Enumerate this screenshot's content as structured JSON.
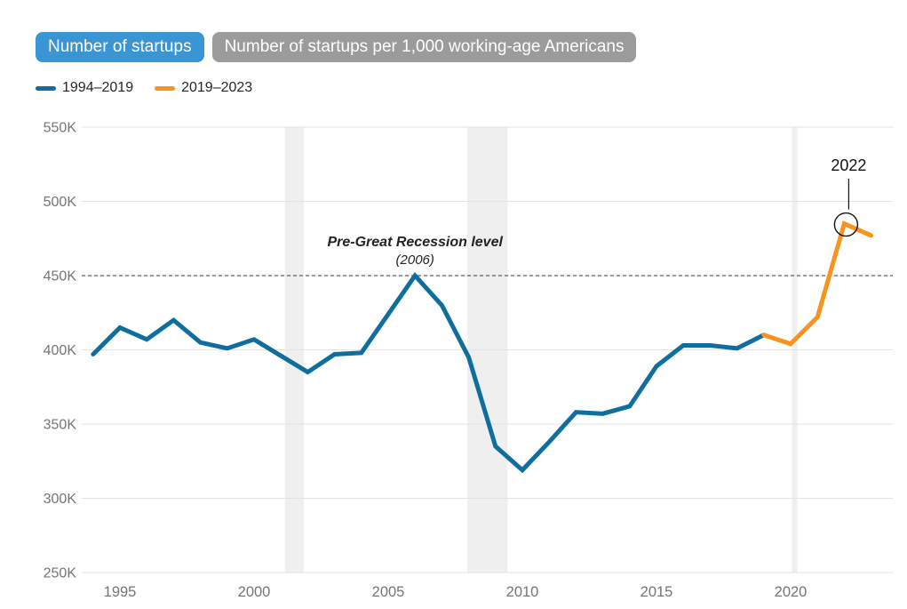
{
  "toggle_buttons": [
    {
      "label": "Number of startups",
      "active": true,
      "bg": "#3a95d5"
    },
    {
      "label": "Number of startups per 1,000 working-age Americans",
      "active": false,
      "bg": "#9b9b9b"
    }
  ],
  "legend": {
    "items": [
      {
        "label": "1994–2019",
        "color": "#106e9e"
      },
      {
        "label": "2019–2023",
        "color": "#f8941d"
      }
    ]
  },
  "colors": {
    "grid": "#e3e3e3",
    "recession_band": "#efefef",
    "reference_dash": "#3a3a3a",
    "axis_text": "#757575",
    "callout": "#111111"
  },
  "chart_data": {
    "type": "line",
    "title": "Number of startups",
    "legend_position": "top-left",
    "grid": true,
    "x_axis": {
      "ticks": [
        1995,
        2000,
        2005,
        2010,
        2015,
        2020
      ],
      "range": [
        1993.6,
        2023.8
      ]
    },
    "y_axis": {
      "tick_values": [
        550000,
        500000,
        450000,
        400000,
        350000,
        300000,
        250000
      ],
      "tick_labels": [
        "550K",
        "500K",
        "450K",
        "400K",
        "350K",
        "300K",
        "250K"
      ],
      "range": [
        250000,
        550000
      ]
    },
    "series": [
      {
        "name": "1994–2019",
        "color": "#106e9e",
        "x": [
          1994,
          1995,
          1996,
          1997,
          1998,
          1999,
          2000,
          2001,
          2002,
          2003,
          2004,
          2005,
          2006,
          2007,
          2008,
          2009,
          2010,
          2011,
          2012,
          2013,
          2014,
          2015,
          2016,
          2017,
          2018,
          2019
        ],
        "values": [
          397000,
          415000,
          407000,
          420000,
          405000,
          401000,
          407000,
          396000,
          385000,
          397000,
          398000,
          424000,
          450000,
          430000,
          395000,
          335000,
          319000,
          338000,
          358000,
          357000,
          362000,
          389000,
          403000,
          403000,
          401000,
          410000
        ]
      },
      {
        "name": "2019–2023",
        "color": "#f8941d",
        "x": [
          2019,
          2020,
          2021,
          2022,
          2023
        ],
        "values": [
          410000,
          404000,
          422000,
          485000,
          477000
        ]
      }
    ],
    "reference_line": {
      "value": 450000,
      "label": "Pre-Great Recession level",
      "sublabel": "(2006)",
      "label_x": 2006,
      "style": "dashed"
    },
    "callout": {
      "label": "2022",
      "x": 2022,
      "value": 485000
    },
    "recession_bands": [
      {
        "from": 2001.15,
        "to": 2001.85
      },
      {
        "from": 2007.95,
        "to": 2009.45
      },
      {
        "from": 2020.05,
        "to": 2020.25
      }
    ]
  }
}
